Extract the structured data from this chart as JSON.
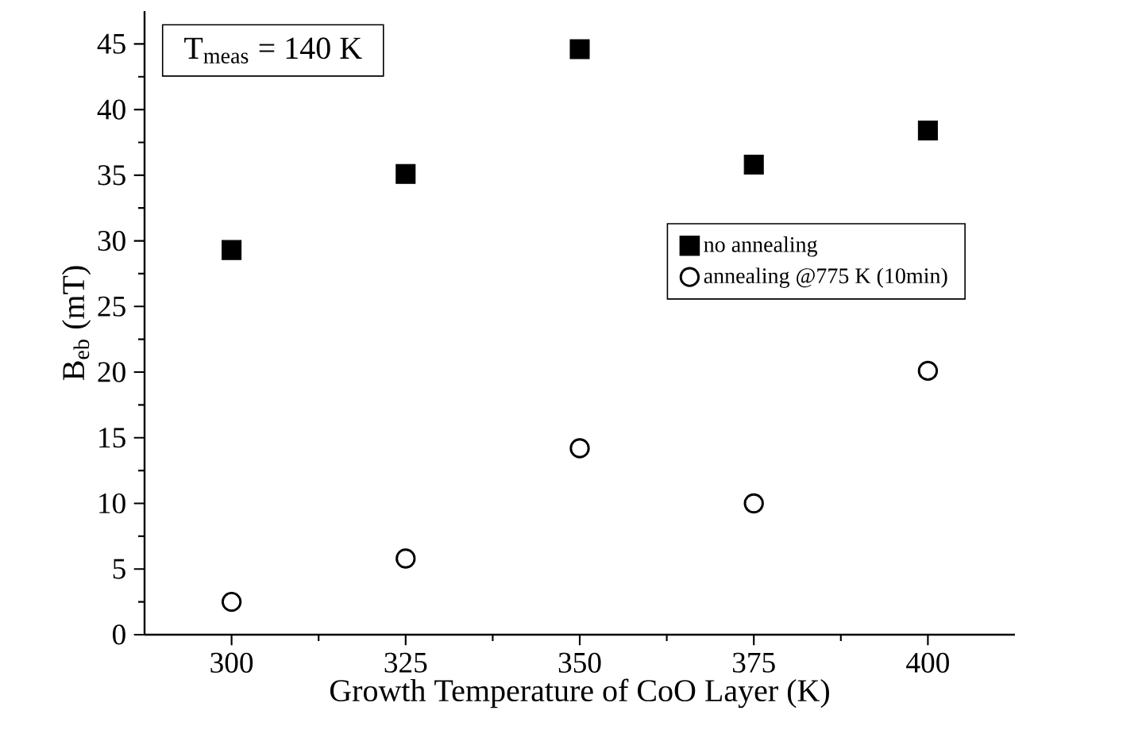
{
  "chart_data": {
    "type": "scatter",
    "xlabel": "Growth Temperature of CoO Layer (K)",
    "ylabel": "B$_{eb}$ (mT)",
    "x": [
      300,
      325,
      350,
      375,
      400
    ],
    "series": [
      {
        "name": "no annealing",
        "color": "#000000",
        "marker": "square",
        "values": [
          29.3,
          35.1,
          44.6,
          35.8,
          38.4
        ]
      },
      {
        "name": "annealing @775 K (10min)",
        "color": "#000000",
        "marker": "circle",
        "values": [
          2.5,
          5.8,
          14.2,
          10.0,
          20.1
        ]
      }
    ],
    "xlim": [
      287.5,
      412.5
    ],
    "ylim": [
      0,
      47.5
    ],
    "xticks": [
      300,
      325,
      350,
      375,
      400
    ],
    "yticks": [
      0,
      5,
      10,
      15,
      20,
      25,
      30,
      35,
      40,
      45
    ],
    "legend": "right",
    "grid": false,
    "annotations": [
      "T$_{meas}$ = 140 K"
    ]
  }
}
